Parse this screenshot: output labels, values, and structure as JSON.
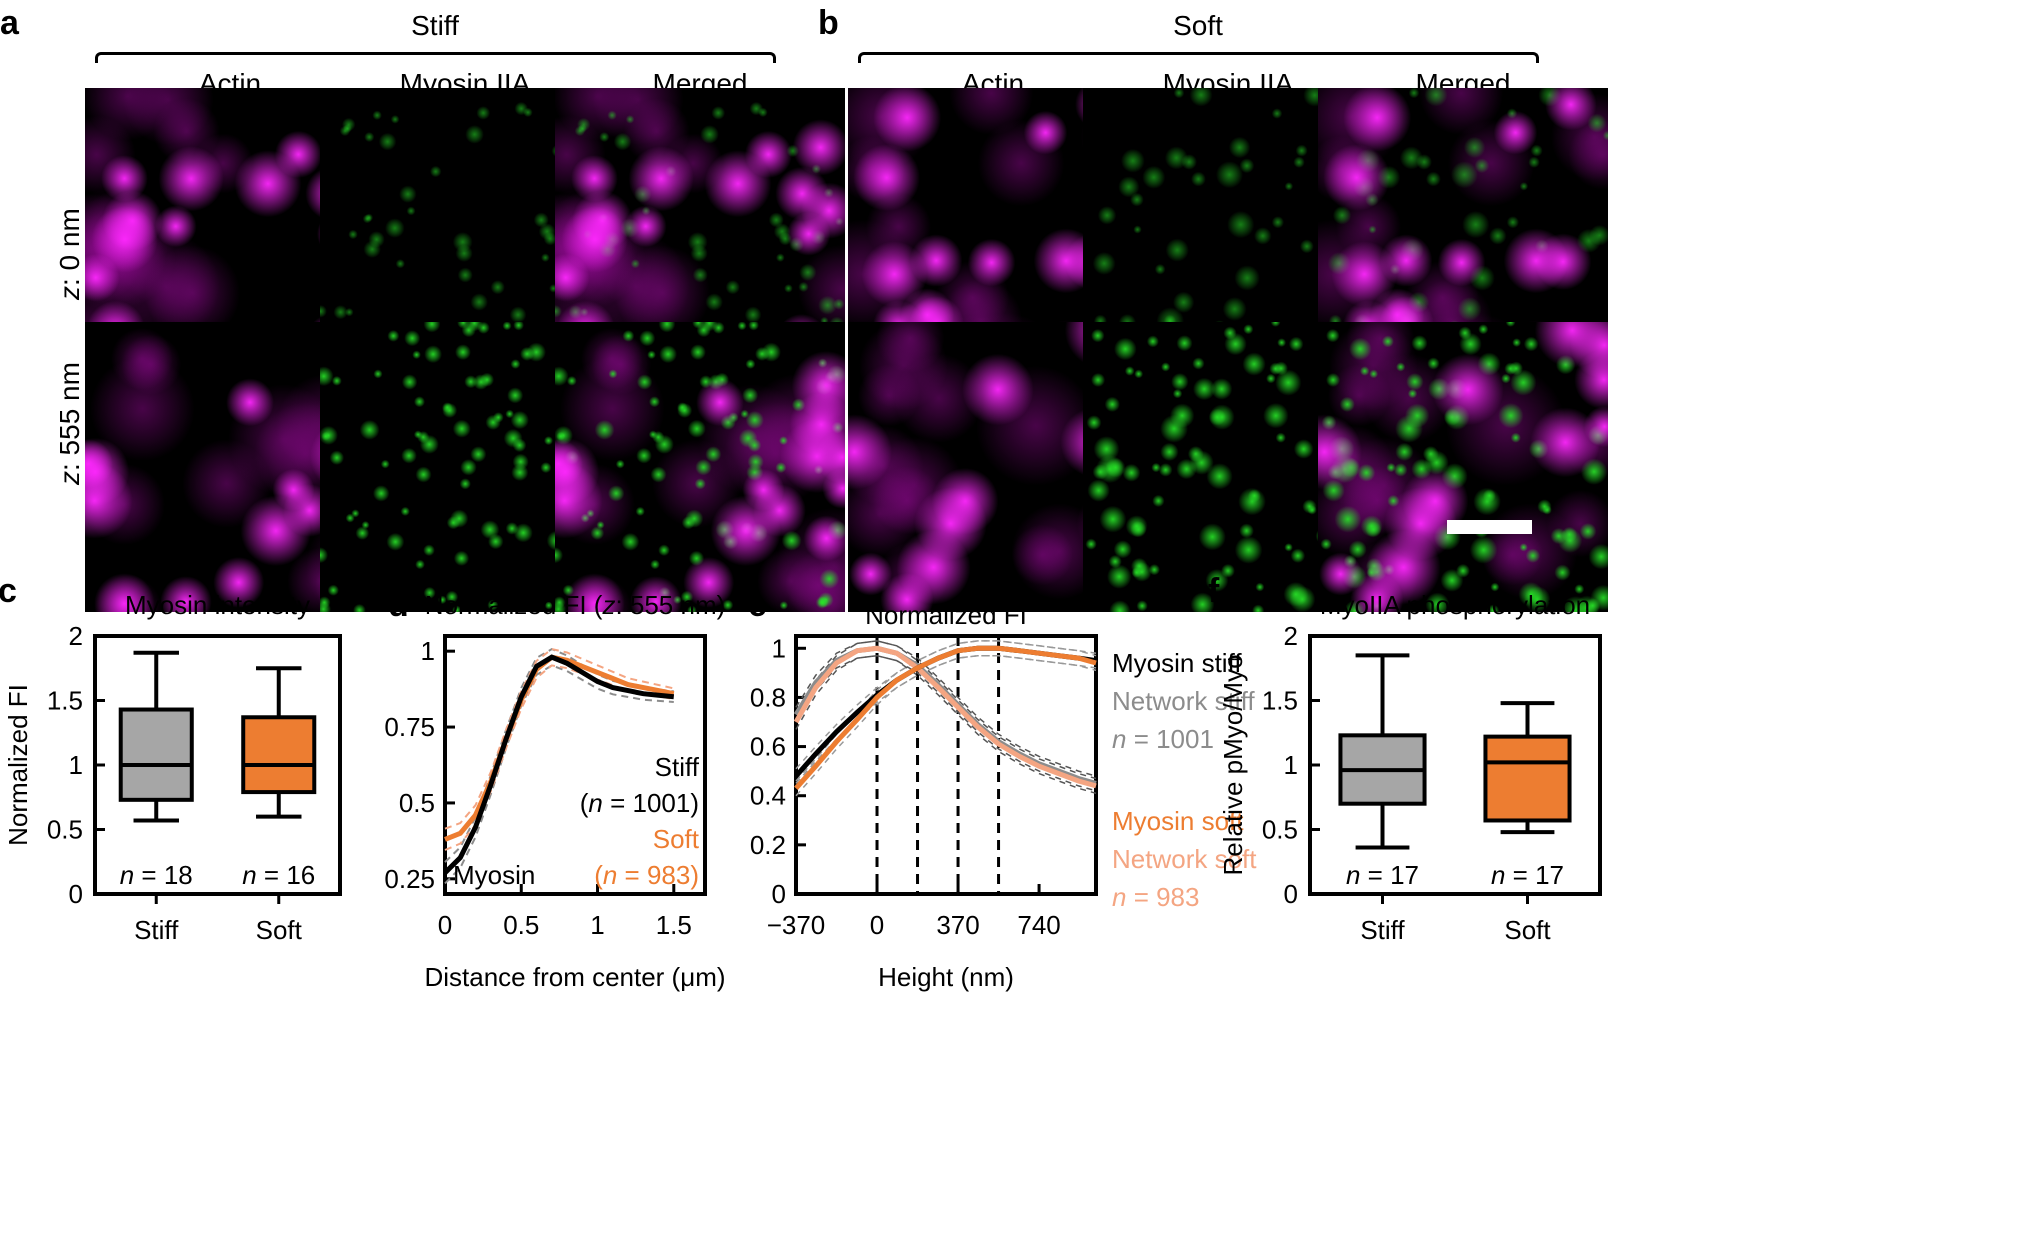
{
  "panels": {
    "a": {
      "letter": "a",
      "condition": "Stiff",
      "columns": [
        "Actin",
        "Myosin IIA",
        "Merged"
      ],
      "rows": [
        "z: 0 nm",
        "z: 555 nm"
      ]
    },
    "b": {
      "letter": "b",
      "condition": "Soft",
      "columns": [
        "Actin",
        "Myosin IIA",
        "Merged"
      ],
      "rows": [
        "z: 0 nm",
        "z: 555 nm"
      ]
    }
  },
  "colors": {
    "actin": "#ff2bff",
    "myosin": "#2ee62e",
    "stiff_box": "#a6a6a6",
    "soft_box": "#ed7d31",
    "network_soft": "#f4a582",
    "network_stiff": "#8c8c8c"
  },
  "chart_data": [
    {
      "id": "c",
      "letter": "c",
      "type": "box",
      "title": "Myosin intensity",
      "ylabel": "Normalized FI",
      "xlabel": "",
      "ylim": [
        0,
        2
      ],
      "yticks": [
        "0",
        "0.5",
        "1",
        "1.5",
        "2"
      ],
      "categories": [
        "Stiff",
        "Soft"
      ],
      "boxes": [
        {
          "name": "Stiff",
          "min": 0.57,
          "q1": 0.73,
          "median": 1.0,
          "q3": 1.43,
          "max": 1.87,
          "n_prefix": "n",
          "n_text": " = 18"
        },
        {
          "name": "Soft",
          "min": 0.6,
          "q1": 0.79,
          "median": 1.0,
          "q3": 1.37,
          "max": 1.75,
          "n_prefix": "n",
          "n_text": " = 16"
        }
      ]
    },
    {
      "id": "d",
      "letter": "d",
      "type": "line",
      "title_pre": "Normalized FI (",
      "title_italic": "z",
      "title_post": ": 555 nm)",
      "xlabel": "Distance from center (μm)",
      "ylabel": "",
      "xlim": [
        0,
        1.5
      ],
      "ylim": [
        0.2,
        1.05
      ],
      "xticks": [
        "0",
        "0.5",
        "1",
        "1.5"
      ],
      "yticks": [
        "0.25",
        "0.5",
        "0.75",
        "1"
      ],
      "x": [
        0,
        0.1,
        0.2,
        0.3,
        0.4,
        0.5,
        0.6,
        0.7,
        0.8,
        0.9,
        1.0,
        1.1,
        1.2,
        1.3,
        1.4,
        1.5
      ],
      "series": [
        {
          "name": "Stiff",
          "values": [
            0.27,
            0.32,
            0.42,
            0.56,
            0.71,
            0.85,
            0.95,
            0.98,
            0.96,
            0.93,
            0.9,
            0.88,
            0.87,
            0.86,
            0.855,
            0.85
          ]
        },
        {
          "name": "Soft",
          "values": [
            0.38,
            0.4,
            0.46,
            0.57,
            0.71,
            0.84,
            0.94,
            0.98,
            0.97,
            0.95,
            0.93,
            0.91,
            0.89,
            0.88,
            0.87,
            0.86
          ]
        }
      ],
      "annotation": "Myosin",
      "legend": [
        {
          "label": "Stiff",
          "n_prefix": "(",
          "n_italic": "n",
          "n_text": " = 1001)"
        },
        {
          "label": "Soft",
          "n_prefix": "(",
          "n_italic": "n",
          "n_text": " = 983)"
        }
      ]
    },
    {
      "id": "e",
      "letter": "e",
      "type": "line",
      "title": "Normalized FI",
      "xlabel": "Height (nm)",
      "ylabel": "",
      "xlim": [
        -370,
        1000
      ],
      "ylim": [
        0,
        1.05
      ],
      "xticks": [
        "−370",
        "0",
        "370",
        "740"
      ],
      "yticks": [
        "0",
        "0.2",
        "0.4",
        "0.6",
        "0.8",
        "1"
      ],
      "vlines": [
        0,
        185,
        370,
        555
      ],
      "x": [
        -370,
        -280,
        -185,
        -90,
        0,
        90,
        185,
        280,
        370,
        460,
        555,
        650,
        740,
        830,
        920,
        1000
      ],
      "series": [
        {
          "name": "Myosin stiff",
          "values": [
            0.48,
            0.57,
            0.66,
            0.74,
            0.81,
            0.87,
            0.92,
            0.96,
            0.99,
            1.0,
            1.0,
            0.99,
            0.98,
            0.97,
            0.96,
            0.95
          ]
        },
        {
          "name": "Network stiff",
          "values": [
            0.73,
            0.86,
            0.95,
            0.99,
            1.0,
            0.98,
            0.93,
            0.85,
            0.77,
            0.69,
            0.62,
            0.57,
            0.53,
            0.5,
            0.47,
            0.45
          ]
        },
        {
          "name": "Myosin soft",
          "values": [
            0.43,
            0.52,
            0.62,
            0.71,
            0.8,
            0.87,
            0.92,
            0.96,
            0.99,
            1.0,
            1.0,
            0.99,
            0.98,
            0.97,
            0.96,
            0.94
          ]
        },
        {
          "name": "Network soft",
          "values": [
            0.7,
            0.84,
            0.94,
            0.99,
            1.0,
            0.98,
            0.92,
            0.84,
            0.76,
            0.68,
            0.61,
            0.56,
            0.52,
            0.49,
            0.46,
            0.44
          ]
        }
      ],
      "legend": [
        {
          "label": "Myosin stiff"
        },
        {
          "label": "Network stiff"
        },
        {
          "n_italic": "n",
          "n_text": " = 1001"
        },
        {
          "label": "Myosin soft"
        },
        {
          "label": "Network soft"
        },
        {
          "n_italic": "n",
          "n_text": " = 983"
        }
      ]
    },
    {
      "id": "f",
      "letter": "f",
      "type": "box",
      "title": "MyoIIA phosphorylation",
      "ylabel": "Relative pMyo/Myo",
      "xlabel": "",
      "ylim": [
        0,
        2
      ],
      "yticks": [
        "0",
        "0.5",
        "1",
        "1.5",
        "2"
      ],
      "categories": [
        "Stiff",
        "Soft"
      ],
      "boxes": [
        {
          "name": "Stiff",
          "min": 0.36,
          "q1": 0.7,
          "median": 0.96,
          "q3": 1.23,
          "max": 1.85,
          "n_prefix": "n",
          "n_text": " = 17"
        },
        {
          "name": "Soft",
          "min": 0.48,
          "q1": 0.57,
          "median": 1.02,
          "q3": 1.22,
          "max": 1.48,
          "n_prefix": "n",
          "n_text": " = 17"
        }
      ]
    }
  ]
}
